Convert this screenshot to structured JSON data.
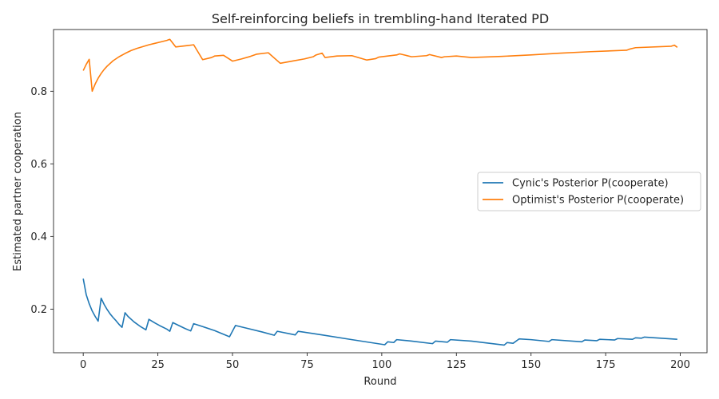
{
  "chart_data": {
    "type": "line",
    "title": "Self-reinforcing beliefs in trembling-hand Iterated PD",
    "xlabel": "Round",
    "ylabel": "Estimated partner cooperation",
    "xlim": [
      -9.95,
      208.95
    ],
    "ylim": [
      0.08,
      0.97
    ],
    "xticks": [
      0,
      25,
      50,
      75,
      100,
      125,
      150,
      175,
      200
    ],
    "yticks": [
      0.2,
      0.4,
      0.6,
      0.8
    ],
    "ytick_labels": [
      "0.2",
      "0.4",
      "0.6",
      "0.8"
    ],
    "grid": false,
    "legend_position": "center-right",
    "series": [
      {
        "name": "Cynic's Posterior P(cooperate)",
        "color": "#1f77b4",
        "x": [
          0,
          1,
          2,
          3,
          4,
          5,
          6,
          7,
          8,
          9,
          10,
          11,
          12,
          13,
          14,
          15,
          17,
          19,
          21,
          22,
          24,
          26,
          28,
          29,
          30,
          32,
          34,
          36,
          37,
          40,
          44,
          49,
          51,
          55,
          60,
          64,
          65,
          71,
          72,
          80,
          90,
          101,
          102,
          104,
          105,
          110,
          117,
          118,
          122,
          123,
          130,
          141,
          142,
          144,
          146,
          150,
          156,
          157,
          167,
          168,
          172,
          173,
          178,
          179,
          184,
          185,
          187,
          188,
          199
        ],
        "y": [
          0.284,
          0.24,
          0.215,
          0.195,
          0.18,
          0.167,
          0.23,
          0.213,
          0.199,
          0.187,
          0.177,
          0.168,
          0.158,
          0.15,
          0.19,
          0.18,
          0.165,
          0.153,
          0.143,
          0.172,
          0.162,
          0.153,
          0.145,
          0.139,
          0.163,
          0.155,
          0.147,
          0.14,
          0.16,
          0.152,
          0.141,
          0.124,
          0.155,
          0.147,
          0.137,
          0.128,
          0.139,
          0.129,
          0.139,
          0.129,
          0.116,
          0.102,
          0.11,
          0.108,
          0.116,
          0.112,
          0.105,
          0.112,
          0.109,
          0.116,
          0.112,
          0.101,
          0.108,
          0.106,
          0.118,
          0.116,
          0.111,
          0.116,
          0.11,
          0.115,
          0.113,
          0.117,
          0.115,
          0.119,
          0.117,
          0.121,
          0.12,
          0.123,
          0.117
        ]
      },
      {
        "name": "Optimist's Posterior P(cooperate)",
        "color": "#ff7f0e",
        "x": [
          0,
          1,
          2,
          3,
          4,
          5,
          6,
          7,
          8,
          10,
          12,
          14,
          16,
          18,
          20,
          22,
          24,
          26,
          28,
          29,
          31,
          33,
          35,
          37,
          40,
          43,
          44,
          47,
          50,
          53,
          56,
          58,
          62,
          66,
          70,
          74,
          77,
          78,
          80,
          81,
          85,
          90,
          95,
          98,
          99,
          102,
          105,
          106,
          110,
          115,
          116,
          120,
          121,
          125,
          130,
          140,
          150,
          160,
          170,
          182,
          183,
          185,
          197,
          198,
          199
        ],
        "y": [
          0.857,
          0.874,
          0.888,
          0.8,
          0.82,
          0.836,
          0.849,
          0.86,
          0.869,
          0.884,
          0.895,
          0.904,
          0.912,
          0.918,
          0.923,
          0.928,
          0.932,
          0.936,
          0.94,
          0.943,
          0.922,
          0.924,
          0.926,
          0.928,
          0.887,
          0.893,
          0.897,
          0.899,
          0.883,
          0.889,
          0.896,
          0.902,
          0.906,
          0.877,
          0.883,
          0.889,
          0.895,
          0.9,
          0.905,
          0.893,
          0.897,
          0.898,
          0.886,
          0.89,
          0.894,
          0.897,
          0.9,
          0.903,
          0.895,
          0.898,
          0.901,
          0.893,
          0.895,
          0.897,
          0.893,
          0.896,
          0.9,
          0.905,
          0.909,
          0.913,
          0.916,
          0.92,
          0.924,
          0.927,
          0.921
        ]
      }
    ]
  }
}
